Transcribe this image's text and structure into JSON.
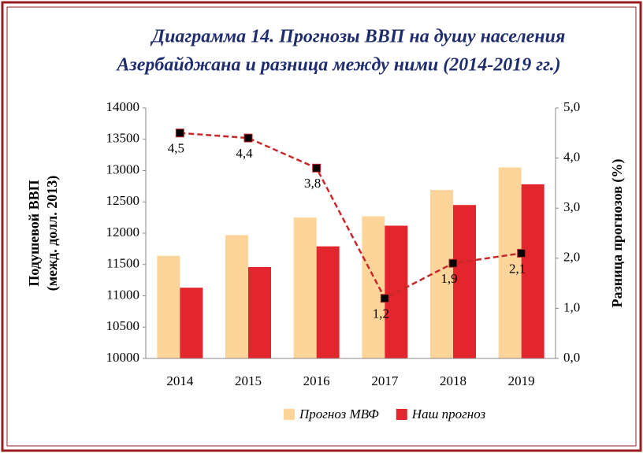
{
  "chart_data": {
    "type": "bar",
    "title": [
      "Диаграмма 14. Прогнозы ВВП на душу населения",
      "Азербайджана и разница между ними (2014-2019 гг.)"
    ],
    "ylabel": [
      "Подушевой ВВП",
      "(межд. долл. 2013)"
    ],
    "y2label": "Разница прогнозов (%)",
    "categories": [
      "2014",
      "2015",
      "2016",
      "2017",
      "2018",
      "2019"
    ],
    "series": [
      {
        "name": "Прогноз МВФ",
        "color": "#fdd59a",
        "type": "bar",
        "values": [
          11640,
          11970,
          12250,
          12270,
          12690,
          13050
        ]
      },
      {
        "name": "Наш прогноз",
        "color": "#e3262d",
        "type": "bar",
        "values": [
          11130,
          11460,
          11790,
          12120,
          12450,
          12780
        ]
      },
      {
        "color": "#c8282a",
        "type": "line",
        "axis": "y2",
        "values": [
          4.5,
          4.4,
          3.8,
          1.2,
          1.9,
          2.1
        ],
        "value_labels": [
          "4,5",
          "4,4",
          "3,8",
          "1,2",
          "1,9",
          "2,1"
        ]
      }
    ],
    "ylim": [
      10000,
      14000
    ],
    "yticks": [
      10000,
      10500,
      11000,
      11500,
      12000,
      12500,
      13000,
      13500,
      14000
    ],
    "y2lim": [
      0,
      5
    ],
    "y2ticks": [
      {
        "value": 0,
        "label": "0,0"
      },
      {
        "value": 1,
        "label": "1,0"
      },
      {
        "value": 2,
        "label": "2,0"
      },
      {
        "value": 3,
        "label": "3,0"
      },
      {
        "value": 4,
        "label": "4,0"
      },
      {
        "value": 5,
        "label": "5,0"
      }
    ],
    "grid": false,
    "legend": "bottom"
  }
}
